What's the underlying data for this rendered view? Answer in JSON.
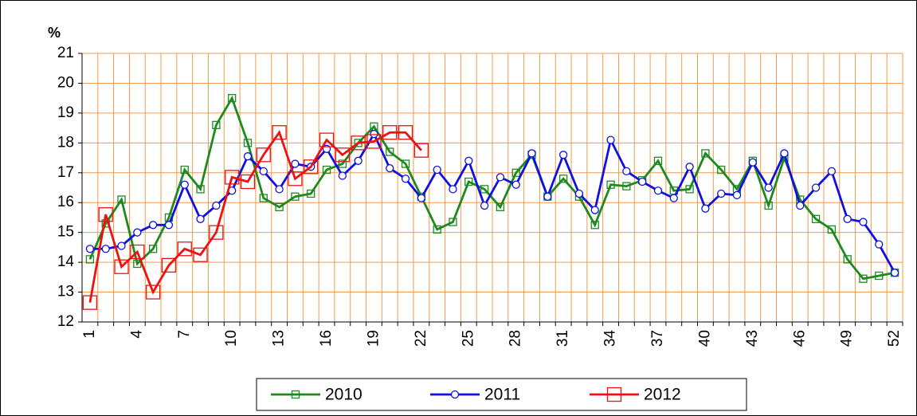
{
  "chart_data": {
    "type": "line",
    "ylabel": "%",
    "categories": [
      1,
      null,
      null,
      4,
      null,
      null,
      7,
      null,
      null,
      10,
      null,
      null,
      13,
      null,
      null,
      16,
      null,
      null,
      19,
      null,
      null,
      22,
      null,
      null,
      25,
      null,
      null,
      28,
      null,
      null,
      31,
      null,
      null,
      34,
      null,
      null,
      37,
      null,
      null,
      40,
      null,
      null,
      43,
      null,
      null,
      46,
      null,
      null,
      49,
      null,
      null,
      52
    ],
    "ylim": [
      12,
      21
    ],
    "yticks": [
      12,
      13,
      14,
      15,
      16,
      17,
      18,
      19,
      20,
      21
    ],
    "grid": true,
    "grid_color": "#f09a50",
    "legend": "bottom",
    "series": [
      {
        "name": "2010",
        "color": "#1e8a1e",
        "marker": "square",
        "values": [
          14.1,
          15.3,
          16.1,
          13.95,
          14.45,
          15.5,
          17.1,
          16.45,
          18.6,
          19.5,
          18.0,
          16.15,
          15.85,
          16.2,
          16.3,
          17.1,
          17.3,
          18.0,
          18.55,
          17.7,
          17.3,
          16.2,
          15.1,
          15.35,
          16.7,
          16.45,
          15.85,
          17.0,
          17.6,
          16.2,
          16.8,
          16.2,
          15.25,
          16.6,
          16.55,
          16.75,
          17.4,
          16.4,
          16.45,
          17.65,
          17.1,
          16.45,
          17.4,
          15.9,
          17.5,
          16.1,
          15.45,
          15.1,
          14.1,
          13.45,
          13.55,
          13.65
        ]
      },
      {
        "name": "2011",
        "color": "#1010e0",
        "marker": "circle",
        "values": [
          14.45,
          14.45,
          14.55,
          15.0,
          15.25,
          15.25,
          16.6,
          15.45,
          15.9,
          16.4,
          17.55,
          17.05,
          16.45,
          17.3,
          17.2,
          17.8,
          16.9,
          17.4,
          18.3,
          17.15,
          16.8,
          16.15,
          17.1,
          16.45,
          17.4,
          15.9,
          16.85,
          16.6,
          17.65,
          16.2,
          17.6,
          16.3,
          15.75,
          18.1,
          17.05,
          16.7,
          16.4,
          16.15,
          17.2,
          15.8,
          16.3,
          16.25,
          17.35,
          16.5,
          17.65,
          15.9,
          16.5,
          17.05,
          15.45,
          15.35,
          14.6,
          13.65
        ]
      },
      {
        "name": "2012",
        "color": "#ee1111",
        "marker": "bigsquare",
        "values": [
          12.65,
          15.6,
          13.85,
          14.35,
          13.0,
          13.9,
          14.45,
          14.25,
          15.0,
          16.85,
          16.7,
          17.6,
          18.35,
          16.8,
          17.2,
          18.1,
          17.6,
          18.0,
          18.05,
          18.35,
          18.35,
          17.75,
          null,
          null,
          null,
          null,
          null,
          null,
          null,
          null,
          null,
          null,
          null,
          null,
          null,
          null,
          null,
          null,
          null,
          null,
          null,
          null,
          null,
          null,
          null,
          null,
          null,
          null,
          null,
          null,
          null,
          null
        ]
      }
    ]
  }
}
